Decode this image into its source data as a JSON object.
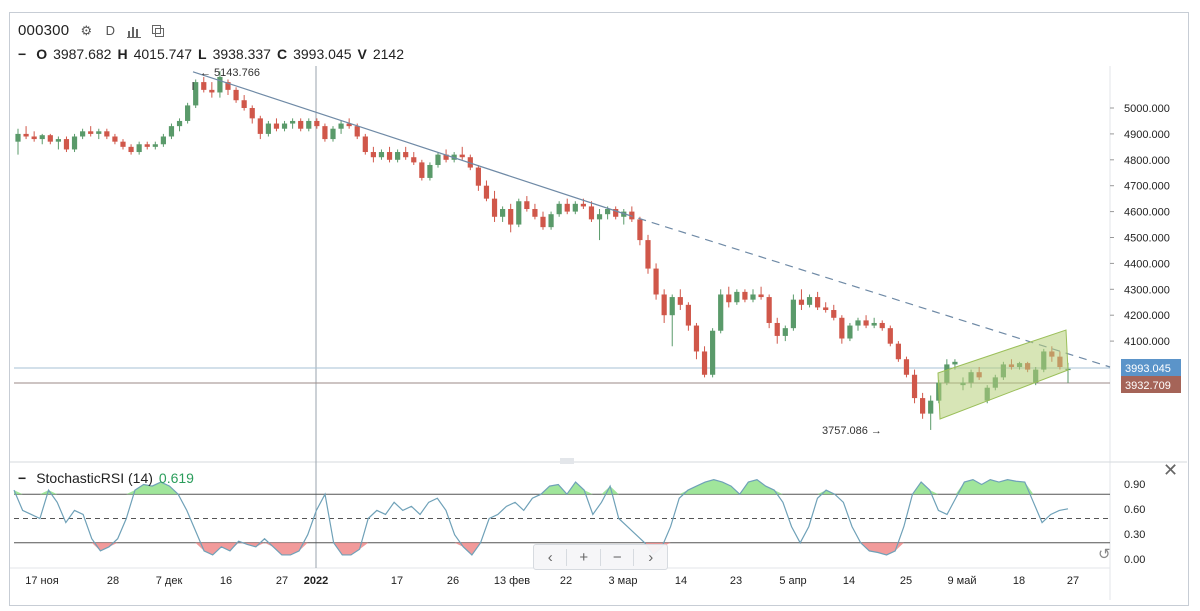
{
  "header": {
    "symbol": "000300",
    "interval": "D",
    "ohlc": {
      "o_label": "O",
      "o": "3987.682",
      "h_label": "H",
      "h": "4015.747",
      "l_label": "L",
      "l": "3938.337",
      "c_label": "C",
      "c": "3993.045",
      "v_label": "V",
      "v": "2142"
    }
  },
  "indicator": {
    "name": "StochasticRSI (14)",
    "value": "0.619"
  },
  "nav": {
    "prev": "‹",
    "zoom_in": "+",
    "zoom_out": "−",
    "next": "›"
  },
  "colors": {
    "up": "#5a9a6a",
    "down": "#d0574a",
    "stoch": "#6fa1b8",
    "fill_up": "#8fe08a",
    "fill_down": "#f08a8a",
    "channel": "#9bbf5a"
  },
  "chart_data": {
    "type": "candlestick",
    "y_ticks": [
      "5000.000",
      "4900.000",
      "4800.000",
      "4700.000",
      "4600.000",
      "4500.000",
      "4400.000",
      "4300.000",
      "4200.000",
      "4100.000"
    ],
    "ylim": [
      3670,
      5220
    ],
    "x_ticks": [
      "17 ноя",
      "28",
      "7 дек",
      "16",
      "27",
      "2022",
      "17",
      "26",
      "13 фев",
      "22",
      "3 мар",
      "14",
      "23",
      "5 апр",
      "14",
      "25",
      "9 май",
      "18",
      "27"
    ],
    "price_labels": {
      "current": "3993.045",
      "previous": "3932.709"
    },
    "annotations": {
      "high": "5143.766",
      "low": "3757.086"
    },
    "stoch_ticks": [
      "0.90",
      "0.60",
      "0.30",
      "0.00"
    ],
    "stoch_levels": {
      "upper": 0.8,
      "middle": 0.5,
      "lower": 0.2
    },
    "ohlc": [
      [
        4870,
        4920,
        4820,
        4900
      ],
      [
        4900,
        4930,
        4880,
        4890
      ],
      [
        4890,
        4910,
        4870,
        4880
      ],
      [
        4880,
        4900,
        4860,
        4895
      ],
      [
        4895,
        4900,
        4860,
        4870
      ],
      [
        4870,
        4890,
        4840,
        4880
      ],
      [
        4880,
        4890,
        4830,
        4840
      ],
      [
        4840,
        4900,
        4830,
        4890
      ],
      [
        4890,
        4920,
        4880,
        4910
      ],
      [
        4910,
        4930,
        4890,
        4900
      ],
      [
        4900,
        4920,
        4880,
        4910
      ],
      [
        4910,
        4920,
        4880,
        4890
      ],
      [
        4890,
        4900,
        4860,
        4870
      ],
      [
        4870,
        4880,
        4840,
        4850
      ],
      [
        4850,
        4860,
        4820,
        4830
      ],
      [
        4830,
        4870,
        4820,
        4860
      ],
      [
        4860,
        4870,
        4840,
        4850
      ],
      [
        4850,
        4870,
        4840,
        4860
      ],
      [
        4860,
        4900,
        4850,
        4890
      ],
      [
        4890,
        4940,
        4880,
        4930
      ],
      [
        4930,
        4960,
        4910,
        4950
      ],
      [
        4950,
        5020,
        4940,
        5010
      ],
      [
        5010,
        5110,
        5000,
        5100
      ],
      [
        5100,
        5120,
        5060,
        5070
      ],
      [
        5070,
        5100,
        5040,
        5060
      ],
      [
        5060,
        5143,
        5040,
        5120
      ],
      [
        5100,
        5110,
        5050,
        5070
      ],
      [
        5070,
        5080,
        5020,
        5030
      ],
      [
        5030,
        5050,
        4990,
        5000
      ],
      [
        5000,
        5010,
        4940,
        4960
      ],
      [
        4960,
        4970,
        4880,
        4900
      ],
      [
        4900,
        4950,
        4890,
        4940
      ],
      [
        4940,
        4960,
        4910,
        4920
      ],
      [
        4920,
        4950,
        4910,
        4940
      ],
      [
        4940,
        4960,
        4920,
        4950
      ],
      [
        4950,
        4960,
        4910,
        4920
      ],
      [
        4920,
        4960,
        4910,
        4950
      ],
      [
        4950,
        4960,
        4920,
        4930
      ],
      [
        4930,
        4940,
        4870,
        4880
      ],
      [
        4880,
        4930,
        4870,
        4920
      ],
      [
        4920,
        4950,
        4900,
        4940
      ],
      [
        4940,
        4960,
        4920,
        4930
      ],
      [
        4930,
        4940,
        4880,
        4890
      ],
      [
        4890,
        4900,
        4820,
        4830
      ],
      [
        4830,
        4850,
        4790,
        4810
      ],
      [
        4810,
        4840,
        4800,
        4830
      ],
      [
        4830,
        4850,
        4790,
        4800
      ],
      [
        4800,
        4840,
        4790,
        4830
      ],
      [
        4830,
        4850,
        4800,
        4810
      ],
      [
        4810,
        4830,
        4780,
        4790
      ],
      [
        4790,
        4800,
        4720,
        4730
      ],
      [
        4730,
        4790,
        4720,
        4780
      ],
      [
        4780,
        4830,
        4770,
        4820
      ],
      [
        4820,
        4840,
        4790,
        4800
      ],
      [
        4800,
        4830,
        4790,
        4820
      ],
      [
        4820,
        4850,
        4800,
        4810
      ],
      [
        4810,
        4820,
        4760,
        4770
      ],
      [
        4770,
        4780,
        4680,
        4700
      ],
      [
        4700,
        4720,
        4640,
        4650
      ],
      [
        4650,
        4680,
        4560,
        4580
      ],
      [
        4580,
        4620,
        4560,
        4610
      ],
      [
        4610,
        4630,
        4520,
        4550
      ],
      [
        4550,
        4650,
        4540,
        4640
      ],
      [
        4640,
        4660,
        4600,
        4610
      ],
      [
        4610,
        4630,
        4570,
        4580
      ],
      [
        4580,
        4600,
        4530,
        4540
      ],
      [
        4540,
        4600,
        4530,
        4590
      ],
      [
        4590,
        4640,
        4580,
        4630
      ],
      [
        4630,
        4650,
        4590,
        4600
      ],
      [
        4600,
        4640,
        4590,
        4630
      ],
      [
        4630,
        4650,
        4610,
        4620
      ],
      [
        4620,
        4640,
        4560,
        4570
      ],
      [
        4570,
        4610,
        4490,
        4590
      ],
      [
        4590,
        4620,
        4570,
        4610
      ],
      [
        4610,
        4620,
        4570,
        4580
      ],
      [
        4580,
        4610,
        4550,
        4600
      ],
      [
        4600,
        4620,
        4560,
        4570
      ],
      [
        4570,
        4580,
        4470,
        4490
      ],
      [
        4490,
        4510,
        4360,
        4380
      ],
      [
        4380,
        4400,
        4260,
        4280
      ],
      [
        4280,
        4300,
        4170,
        4200
      ],
      [
        4200,
        4280,
        4080,
        4270
      ],
      [
        4270,
        4300,
        4220,
        4240
      ],
      [
        4240,
        4250,
        4140,
        4160
      ],
      [
        4160,
        4170,
        4030,
        4060
      ],
      [
        4060,
        4080,
        3960,
        3970
      ],
      [
        3970,
        4150,
        3960,
        4140
      ],
      [
        4140,
        4300,
        4130,
        4280
      ],
      [
        4280,
        4310,
        4230,
        4250
      ],
      [
        4250,
        4300,
        4240,
        4290
      ],
      [
        4290,
        4300,
        4250,
        4260
      ],
      [
        4260,
        4300,
        4250,
        4280
      ],
      [
        4280,
        4310,
        4260,
        4270
      ],
      [
        4270,
        4280,
        4150,
        4170
      ],
      [
        4170,
        4190,
        4090,
        4120
      ],
      [
        4120,
        4160,
        4100,
        4150
      ],
      [
        4150,
        4280,
        4140,
        4260
      ],
      [
        4260,
        4300,
        4220,
        4240
      ],
      [
        4240,
        4280,
        4230,
        4270
      ],
      [
        4270,
        4290,
        4220,
        4230
      ],
      [
        4230,
        4250,
        4210,
        4220
      ],
      [
        4220,
        4240,
        4180,
        4190
      ],
      [
        4190,
        4200,
        4090,
        4110
      ],
      [
        4110,
        4170,
        4100,
        4160
      ],
      [
        4160,
        4190,
        4140,
        4180
      ],
      [
        4180,
        4200,
        4150,
        4160
      ],
      [
        4160,
        4190,
        4150,
        4170
      ],
      [
        4170,
        4180,
        4140,
        4150
      ],
      [
        4150,
        4160,
        4080,
        4090
      ],
      [
        4090,
        4100,
        4020,
        4030
      ],
      [
        4030,
        4040,
        3960,
        3970
      ],
      [
        3970,
        3990,
        3860,
        3880
      ],
      [
        3880,
        3900,
        3800,
        3820
      ],
      [
        3820,
        3890,
        3757,
        3870
      ],
      [
        3870,
        3950,
        3860,
        3940
      ],
      [
        3940,
        4030,
        3930,
        4010
      ],
      [
        4010,
        4030,
        3990,
        4020
      ],
      [
        3930,
        3960,
        3910,
        3940
      ],
      [
        3940,
        3990,
        3920,
        3980
      ],
      [
        3980,
        4000,
        3950,
        3960
      ],
      [
        3870,
        3930,
        3860,
        3920
      ],
      [
        3920,
        3970,
        3910,
        3960
      ],
      [
        3960,
        4020,
        3950,
        4010
      ],
      [
        4010,
        4030,
        3990,
        4000
      ],
      [
        4000,
        4020,
        3990,
        4015
      ],
      [
        4015,
        4020,
        3980,
        3990
      ],
      [
        3940,
        4000,
        3930,
        3990
      ],
      [
        3990,
        4070,
        3980,
        4060
      ],
      [
        4060,
        4080,
        4020,
        4040
      ],
      [
        4040,
        4060,
        3990,
        4000
      ],
      [
        3988,
        4016,
        3938,
        3993
      ]
    ],
    "stoch_rsi": [
      0.85,
      0.6,
      0.55,
      0.5,
      0.85,
      0.7,
      0.45,
      0.6,
      0.55,
      0.25,
      0.1,
      0.15,
      0.25,
      0.5,
      0.85,
      0.92,
      0.9,
      0.95,
      0.9,
      0.8,
      0.6,
      0.35,
      0.1,
      0.05,
      0.15,
      0.1,
      0.22,
      0.18,
      0.15,
      0.25,
      0.15,
      0.05,
      0.05,
      0.1,
      0.3,
      0.6,
      0.8,
      0.2,
      0.05,
      0.05,
      0.12,
      0.5,
      0.6,
      0.55,
      0.7,
      0.6,
      0.65,
      0.55,
      0.7,
      0.75,
      0.6,
      0.3,
      0.15,
      0.05,
      0.2,
      0.5,
      0.55,
      0.65,
      0.7,
      0.6,
      0.75,
      0.8,
      0.9,
      0.92,
      0.8,
      0.95,
      0.85,
      0.55,
      0.7,
      0.9,
      0.5,
      0.4,
      0.3,
      0.2,
      0.05,
      0.15,
      0.4,
      0.75,
      0.85,
      0.9,
      0.95,
      0.98,
      0.95,
      0.9,
      0.8,
      0.95,
      0.98,
      0.9,
      0.85,
      0.7,
      0.4,
      0.2,
      0.4,
      0.75,
      0.85,
      0.8,
      0.7,
      0.4,
      0.2,
      0.1,
      0.08,
      0.05,
      0.1,
      0.4,
      0.8,
      0.95,
      0.85,
      0.6,
      0.55,
      0.75,
      0.95,
      0.98,
      0.92,
      0.98,
      0.95,
      0.98,
      0.96,
      0.95,
      0.7,
      0.45,
      0.55,
      0.6,
      0.62
    ]
  }
}
